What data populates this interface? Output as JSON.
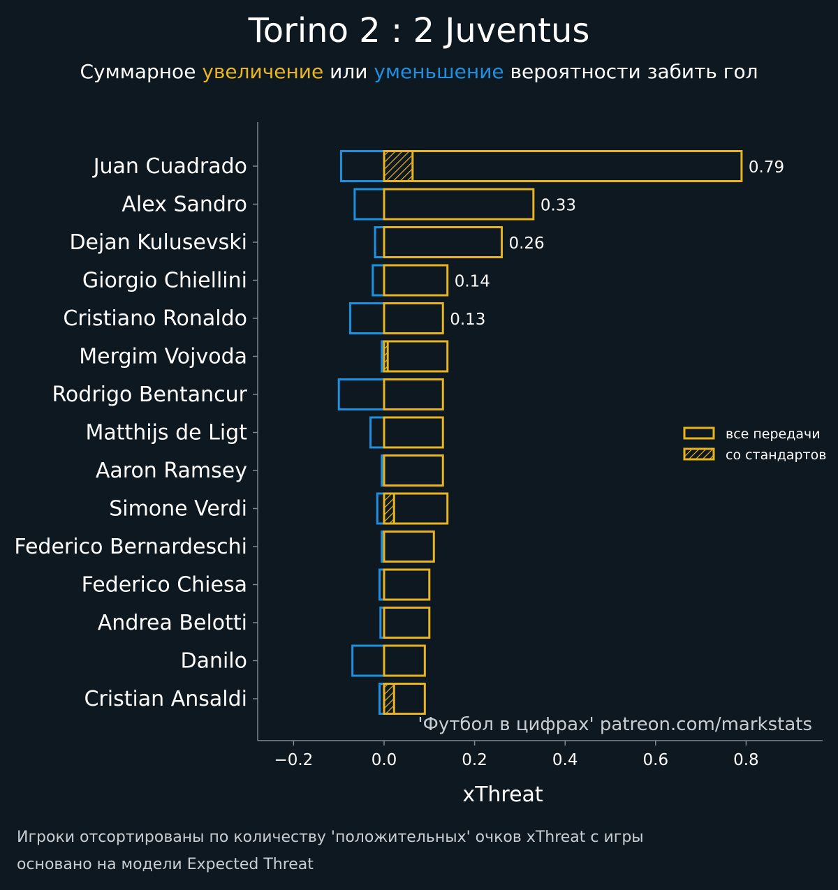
{
  "title": "Torino 2 : 2 Juventus",
  "subtitle": {
    "prefix": "Суммарное ",
    "word_increase": "увеличение",
    "middle": " или ",
    "word_decrease": "уменьшение",
    "suffix": " вероятности забить гол"
  },
  "colors": {
    "background": "#0d1820",
    "positive": "#e8b422",
    "negative": "#1e90e0",
    "text": "#ffffff",
    "muted": "#c8cdd2",
    "axis": "#7b8a93"
  },
  "watermark": "'Футбол в цифрах' patreon.com/markstats",
  "footnotes": [
    "Игроки отсортированы по количеству 'положительных' очков xThreat с игры",
    "основано на модели Expected Threat"
  ],
  "chart_data": {
    "type": "bar",
    "orientation": "horizontal",
    "xlabel": "xThreat",
    "xlim": [
      -0.28,
      0.97
    ],
    "xticks": [
      -0.2,
      0.0,
      0.2,
      0.4,
      0.6,
      0.8
    ],
    "xtick_labels": [
      "−0.2",
      "0.0",
      "0.2",
      "0.4",
      "0.6",
      "0.8"
    ],
    "legend": {
      "position": "right",
      "entries": [
        "все передачи",
        "со стандартов"
      ]
    },
    "categories": [
      "Juan Cuadrado",
      "Alex Sandro",
      "Dejan Kulusevski",
      "Giorgio Chiellini",
      "Cristiano Ronaldo",
      "Mergim Vojvoda",
      "Rodrigo Bentancur",
      "Matthijs de Ligt",
      "Aaron Ramsey",
      "Simone Verdi",
      "Federico Bernardeschi",
      "Federico Chiesa",
      "Andrea Belotti",
      "Danilo",
      "Cristian Ansaldi"
    ],
    "series": [
      {
        "name": "все передачи",
        "positive": [
          0.79,
          0.33,
          0.26,
          0.14,
          0.13,
          0.14,
          0.13,
          0.13,
          0.13,
          0.14,
          0.11,
          0.1,
          0.1,
          0.09,
          0.09
        ],
        "negative": [
          -0.095,
          -0.065,
          -0.02,
          -0.025,
          -0.075,
          -0.005,
          -0.1,
          -0.03,
          -0.005,
          -0.015,
          -0.005,
          -0.01,
          -0.008,
          -0.07,
          -0.01
        ]
      },
      {
        "name": "со стандартов",
        "positive": [
          0.063,
          0.0,
          0.0,
          0.0,
          0.0,
          0.008,
          0.0,
          0.0,
          0.0,
          0.022,
          0.0,
          0.0,
          0.0,
          0.0,
          0.022
        ]
      }
    ],
    "value_labels": [
      "0.79",
      "0.33",
      "0.26",
      "0.14",
      "0.13"
    ]
  }
}
